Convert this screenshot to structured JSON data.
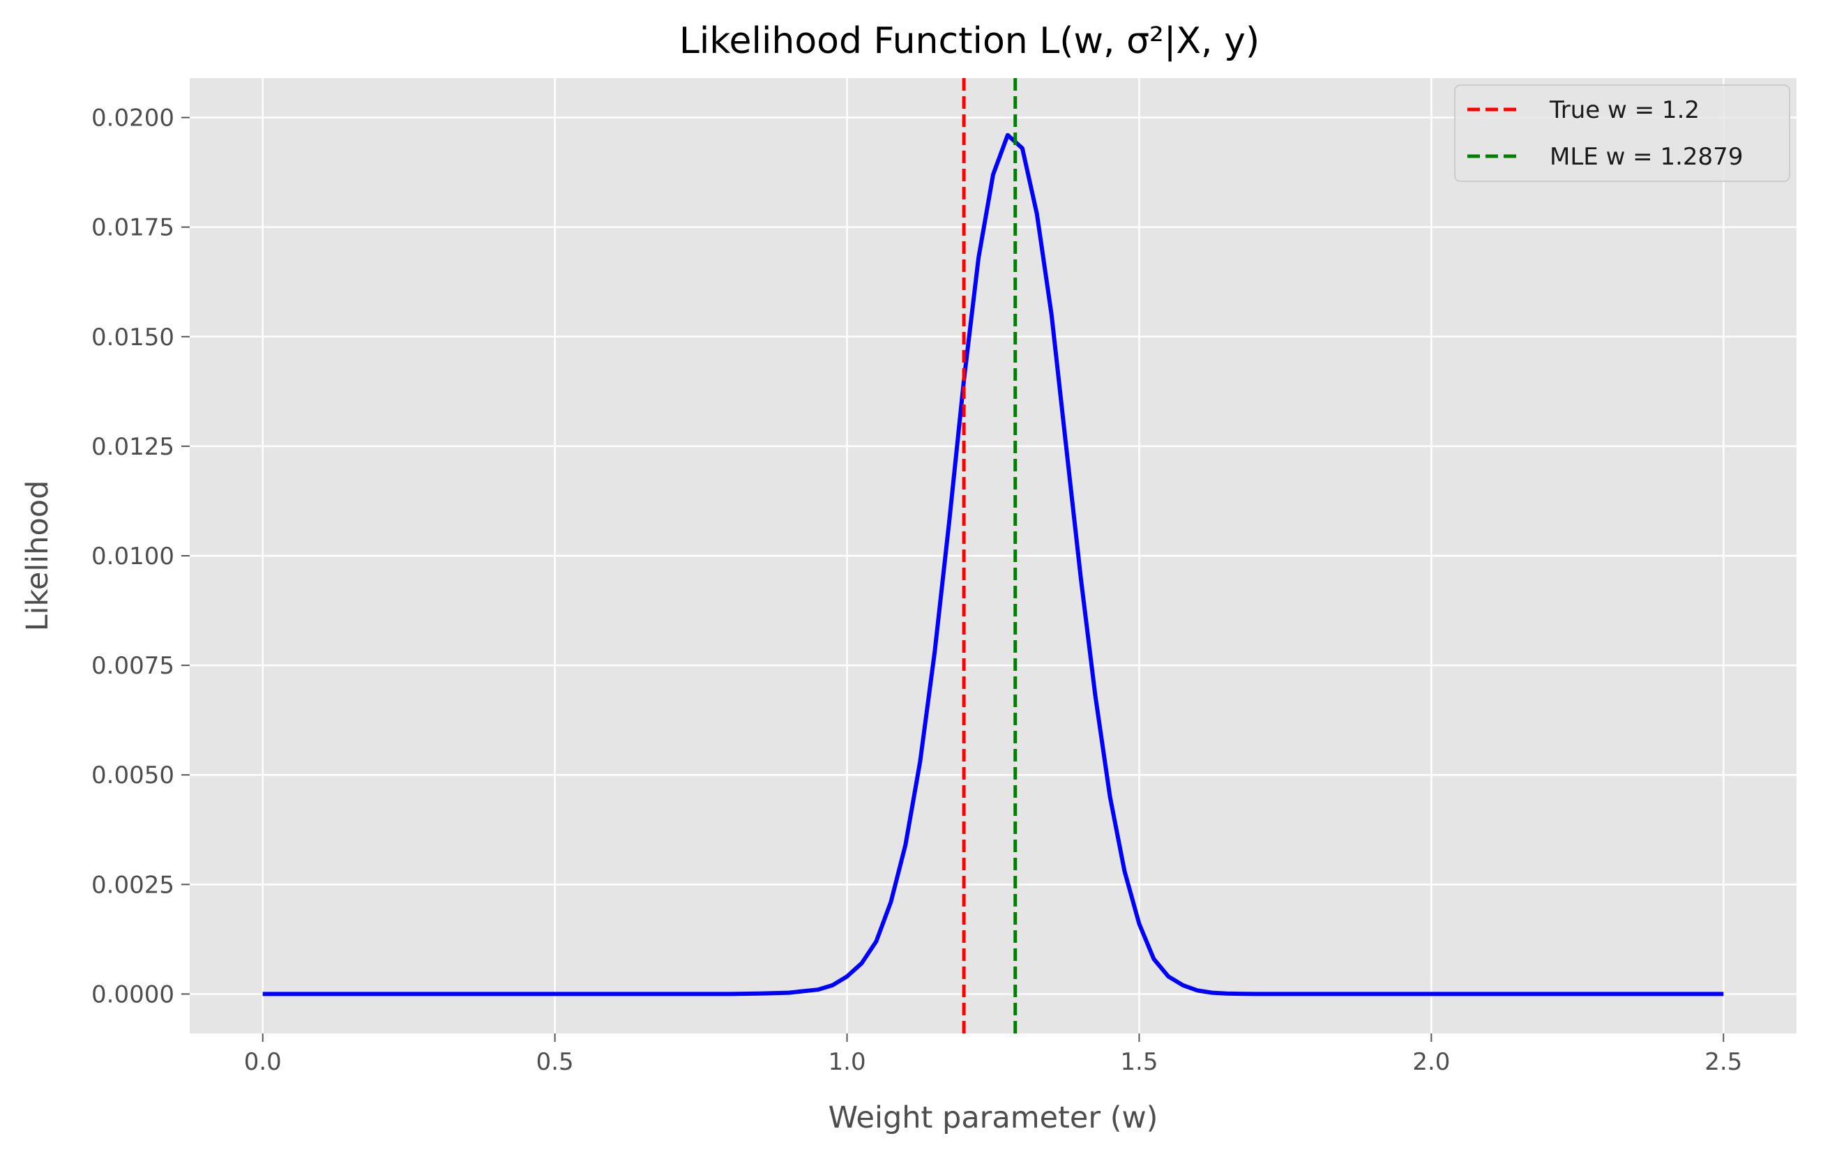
{
  "chart_data": {
    "type": "line",
    "title": "Likelihood Function L(w, σ²|X, y)",
    "xlabel": "Weight parameter (w)",
    "ylabel": "Likelihood",
    "xlim": [
      -0.125,
      2.625
    ],
    "ylim": [
      -0.0009,
      0.0209
    ],
    "xticks": [
      0.0,
      0.5,
      1.0,
      1.5,
      2.0,
      2.5
    ],
    "xtick_labels": [
      "0.0",
      "0.5",
      "1.0",
      "1.5",
      "2.0",
      "2.5"
    ],
    "yticks": [
      0.0,
      0.0025,
      0.005,
      0.0075,
      0.01,
      0.0125,
      0.015,
      0.0175,
      0.02
    ],
    "ytick_labels": [
      "0.0000",
      "0.0025",
      "0.0050",
      "0.0075",
      "0.0100",
      "0.0125",
      "0.0150",
      "0.0175",
      "0.0200"
    ],
    "grid": true,
    "legend_position": "top-right",
    "series": [
      {
        "name": "",
        "color": "#0000ff",
        "x": [
          0.0,
          0.1,
          0.2,
          0.3,
          0.4,
          0.5,
          0.6,
          0.7,
          0.8,
          0.85,
          0.9,
          0.95,
          0.975,
          1.0,
          1.025,
          1.05,
          1.075,
          1.1,
          1.125,
          1.15,
          1.175,
          1.2,
          1.225,
          1.25,
          1.275,
          1.3,
          1.325,
          1.35,
          1.375,
          1.4,
          1.425,
          1.45,
          1.475,
          1.5,
          1.525,
          1.55,
          1.575,
          1.6,
          1.625,
          1.65,
          1.7,
          1.75,
          1.8,
          1.9,
          2.0,
          2.1,
          2.2,
          2.3,
          2.4,
          2.5
        ],
        "y": [
          0.0,
          0.0,
          0.0,
          0.0,
          0.0,
          0.0,
          0.0,
          0.0,
          0.0,
          1e-05,
          3e-05,
          0.0001,
          0.0002,
          0.0004,
          0.0007,
          0.0012,
          0.0021,
          0.0034,
          0.0053,
          0.0078,
          0.0108,
          0.014,
          0.0168,
          0.0187,
          0.0196,
          0.0193,
          0.0178,
          0.0155,
          0.0125,
          0.0095,
          0.0068,
          0.0045,
          0.0028,
          0.0016,
          0.0008,
          0.0004,
          0.0002,
          8e-05,
          3e-05,
          1e-05,
          0.0,
          0.0,
          0.0,
          0.0,
          0.0,
          0.0,
          0.0,
          0.0,
          0.0,
          0.0
        ]
      }
    ],
    "vlines": [
      {
        "label": "True w = 1.2",
        "x": 1.2,
        "color": "#ff0000"
      },
      {
        "label": "MLE w = 1.2879",
        "x": 1.2879,
        "color": "#008000"
      }
    ]
  }
}
